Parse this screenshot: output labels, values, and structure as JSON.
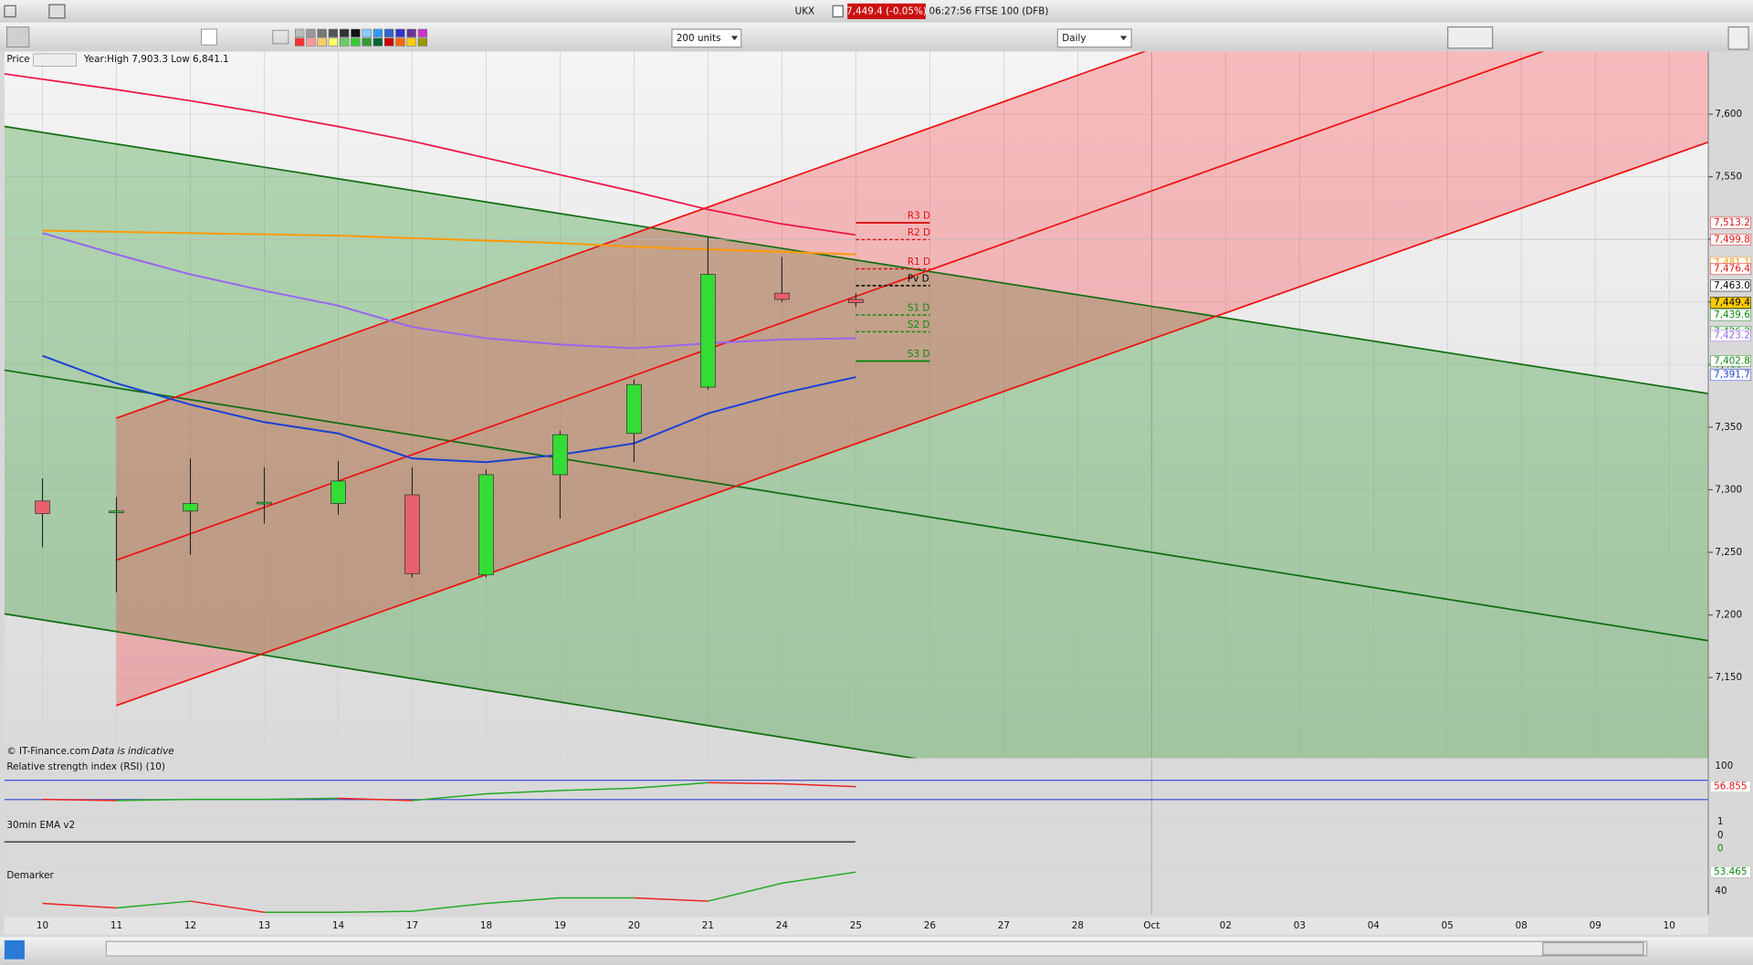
{
  "window": {
    "symbol": "UKX",
    "price_box": "7,449.4 (-0.05%)",
    "info": "06:27:56 FTSE 100 (DFB)"
  },
  "toolbar": {
    "units": "200 units",
    "interval": "Daily"
  },
  "chart_data": {
    "type": "candlestick",
    "title": "Price",
    "subtitle": "Year:High 7,903.3 Low 6,841.1",
    "footnote": "© IT-Finance.com",
    "footnote_note": "Data is indicative",
    "categories": [
      "10",
      "11",
      "12",
      "13",
      "14",
      "17",
      "18",
      "19",
      "20",
      "21",
      "24",
      "25",
      "26",
      "27",
      "28",
      "Oct",
      "02",
      "03",
      "04",
      "05",
      "08",
      "09",
      "10"
    ],
    "open": [
      7291,
      7282,
      7283,
      7289,
      7289,
      7296,
      7232,
      7312,
      7345,
      7382,
      7457,
      7452,
      null,
      null,
      null,
      null,
      null,
      null,
      null,
      null,
      null,
      null,
      null
    ],
    "high": [
      7309,
      7294,
      7325,
      7318,
      7323,
      7318,
      7316,
      7347,
      7388,
      7502,
      7486,
      7457,
      null,
      null,
      null,
      null,
      null,
      null,
      null,
      null,
      null,
      null,
      null
    ],
    "low": [
      7254,
      7218,
      7248,
      7273,
      7280,
      7230,
      7230,
      7277,
      7322,
      7380,
      7450,
      7446,
      null,
      null,
      null,
      null,
      null,
      null,
      null,
      null,
      null,
      null,
      null
    ],
    "close": [
      7281,
      7283,
      7289,
      7290,
      7307,
      7233,
      7312,
      7344,
      7384,
      7472,
      7452,
      7449.4,
      null,
      null,
      null,
      null,
      null,
      null,
      null,
      null,
      null,
      null,
      null
    ],
    "up_color": "#33dd33",
    "down_color": "#e8606e",
    "overlays": [
      {
        "color": "#ff9900",
        "values": [
          7507,
          7506,
          7505,
          7504,
          7503,
          7501,
          7499,
          7497,
          7494,
          7492,
          7490,
          7488
        ]
      },
      {
        "color": "#9966ee",
        "values": [
          7505,
          7488,
          7472,
          7459,
          7447,
          7430,
          7421,
          7416,
          7413,
          7417,
          7420,
          7421
        ]
      },
      {
        "color": "#1a3fd6",
        "values": [
          7407,
          7385,
          7368,
          7354,
          7345,
          7325,
          7322,
          7328,
          7337,
          7361,
          7377,
          7390
        ]
      }
    ],
    "pivots": [
      {
        "name": "R3 D",
        "value": 7513.2,
        "color": "#e01010",
        "dash": false
      },
      {
        "name": "R2 D",
        "value": 7499.8,
        "color": "#e01010",
        "dash": true
      },
      {
        "name": "R1 D",
        "value": 7476.4,
        "color": "#e01010",
        "dash": true
      },
      {
        "name": "Pv D",
        "value": 7463.0,
        "color": "#000000",
        "dash": true
      },
      {
        "name": "S1 D",
        "value": 7439.6,
        "color": "#118811",
        "dash": true
      },
      {
        "name": "S2 D",
        "value": 7426.2,
        "color": "#118811",
        "dash": true
      },
      {
        "name": "S3 D",
        "value": 7402.8,
        "color": "#118811",
        "dash": false
      }
    ],
    "price_tags": [
      {
        "value": 7513.2,
        "label": "7,513.2",
        "color": "#e01010",
        "background": "#ffffff"
      },
      {
        "value": 7499.8,
        "label": "7,499.8",
        "color": "#e01010",
        "background": "#ffffff"
      },
      {
        "value": 7481.1,
        "label": "7,481.1",
        "color": "#ff9900",
        "background": "#ffffff"
      },
      {
        "value": 7476.4,
        "label": "7,476.4",
        "color": "#e01010",
        "background": "#ffffff"
      },
      {
        "value": 7463.0,
        "label": "7,463.0",
        "color": "#000000",
        "background": "#ffffff"
      },
      {
        "value": 7449.4,
        "label": "7,449.4",
        "color": "#000000",
        "background": "#ffcc00"
      },
      {
        "value": 7439.6,
        "label": "7,439.6",
        "color": "#118811",
        "background": "#ffffff"
      },
      {
        "value": 7426.2,
        "label": "7,426.2",
        "color": "#118811",
        "background": "#ffffff"
      },
      {
        "value": 7423.2,
        "label": "7,423.2",
        "color": "#9966ee",
        "background": "#ffffff"
      },
      {
        "value": 7402.8,
        "label": "7,402.8",
        "color": "#118811",
        "background": "#ffffff"
      },
      {
        "value": 7391.7,
        "label": "7,391.7",
        "color": "#1a3fd6",
        "background": "#ffffff"
      }
    ],
    "ylim": [
      7085.7,
      7650
    ],
    "yticks": [
      {
        "value": 7150,
        "label": "7,150"
      },
      {
        "value": 7200,
        "label": "7,200"
      },
      {
        "value": 7250,
        "label": "7,250"
      },
      {
        "value": 7300,
        "label": "7,300"
      },
      {
        "value": 7350,
        "label": "7,350"
      },
      {
        "value": 7400,
        "label": "7,400"
      },
      {
        "value": 7450,
        "label": "7,450"
      },
      {
        "value": 7500,
        "label": "7,500"
      },
      {
        "value": 7550,
        "label": "7,550"
      },
      {
        "value": 7600,
        "label": "7,600"
      }
    ],
    "grid": true
  },
  "rsi": {
    "title": "Relative strength index (RSI) (10)",
    "ylim": [
      0,
      100
    ],
    "yticks": [
      100
    ],
    "levels": [
      70,
      30
    ],
    "values": [
      30.2,
      27.9,
      30.2,
      30.2,
      32.6,
      27.9,
      41.9,
      48.8,
      53.5,
      65.1,
      62.8,
      56.855
    ],
    "tag": {
      "value": 56.855,
      "label": "56.855"
    }
  },
  "ema": {
    "title": "30min EMA v2",
    "labels": [
      "1",
      "0",
      "0"
    ]
  },
  "demarker": {
    "title": "Demarker",
    "ylim": [
      23.4,
      55.8
    ],
    "yticks": [
      40
    ],
    "values": [
      31.3,
      28.1,
      32.9,
      25,
      25,
      25.7,
      31.3,
      35.2,
      35.2,
      32.9,
      45.6,
      53.465
    ],
    "tag": {
      "value": 53.465,
      "label": "53.465"
    }
  }
}
